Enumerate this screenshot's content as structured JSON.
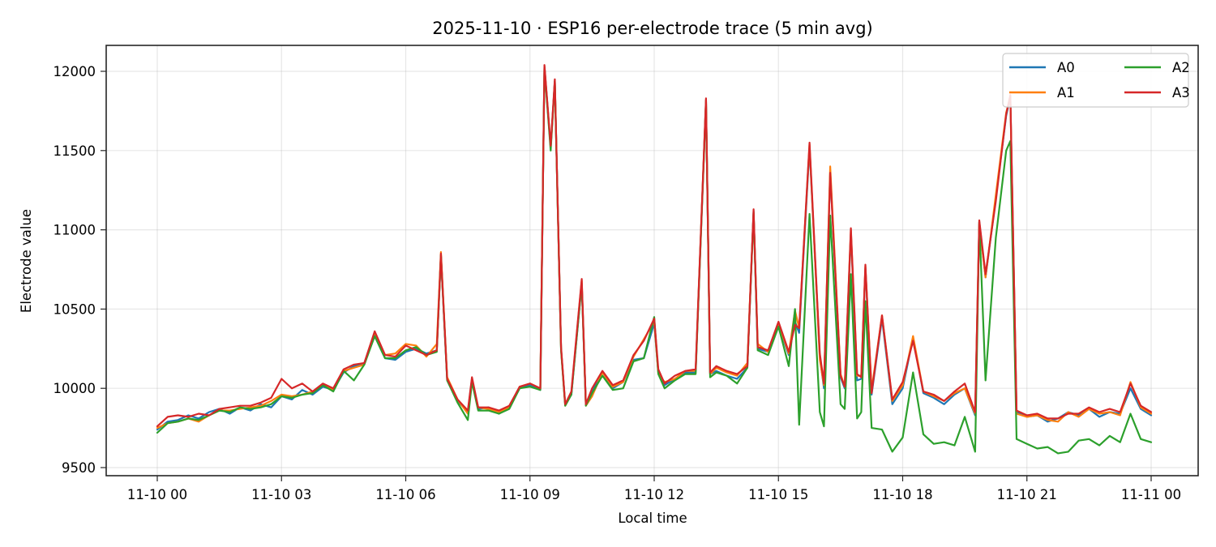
{
  "chart_data": {
    "type": "line",
    "title": "2025-11-10 · ESP16 per-electrode trace (5 min avg)",
    "xlabel": "Local time",
    "ylabel": "Electrode value",
    "ylim": [
      9450,
      12160
    ],
    "xlim_hours": [
      -0.75,
      24.75
    ],
    "grid": true,
    "legend_position": "upper right",
    "legend_columns": 2,
    "x_ticks": [
      {
        "hour": 0,
        "label": "11-10 00"
      },
      {
        "hour": 3,
        "label": "11-10 03"
      },
      {
        "hour": 6,
        "label": "11-10 06"
      },
      {
        "hour": 9,
        "label": "11-10 09"
      },
      {
        "hour": 12,
        "label": "11-10 12"
      },
      {
        "hour": 15,
        "label": "11-10 15"
      },
      {
        "hour": 18,
        "label": "11-10 18"
      },
      {
        "hour": 21,
        "label": "11-10 21"
      },
      {
        "hour": 24,
        "label": "11-11 00"
      }
    ],
    "y_ticks": [
      9500,
      10000,
      10500,
      11000,
      11500,
      12000
    ],
    "x_hours": [
      0,
      0.25,
      0.5,
      0.75,
      1,
      1.25,
      1.5,
      1.75,
      2,
      2.25,
      2.5,
      2.75,
      3,
      3.25,
      3.5,
      3.75,
      4,
      4.25,
      4.5,
      4.75,
      5,
      5.25,
      5.5,
      5.75,
      6,
      6.25,
      6.5,
      6.75,
      6.85,
      7,
      7.25,
      7.5,
      7.6,
      7.75,
      8,
      8.25,
      8.5,
      8.75,
      9,
      9.25,
      9.35,
      9.5,
      9.6,
      9.75,
      9.85,
      10,
      10.25,
      10.35,
      10.5,
      10.75,
      11,
      11.25,
      11.5,
      11.75,
      12,
      12.1,
      12.25,
      12.5,
      12.75,
      13,
      13.25,
      13.35,
      13.5,
      13.75,
      14,
      14.25,
      14.4,
      14.5,
      14.75,
      15,
      15.25,
      15.4,
      15.5,
      15.75,
      16,
      16.1,
      16.25,
      16.5,
      16.6,
      16.75,
      16.9,
      17,
      17.1,
      17.25,
      17.5,
      17.75,
      18,
      18.25,
      18.5,
      18.75,
      19,
      19.25,
      19.5,
      19.75,
      19.85,
      20,
      20.25,
      20.5,
      20.6,
      20.75,
      21,
      21.25,
      21.5,
      21.75,
      22,
      22.25,
      22.5,
      22.75,
      23,
      23.25,
      23.5,
      23.75,
      24
    ],
    "series": [
      {
        "name": "A0",
        "color": "#1f77b4",
        "values": [
          9740,
          9790,
          9800,
          9830,
          9810,
          9850,
          9870,
          9840,
          9880,
          9860,
          9900,
          9880,
          9950,
          9930,
          9990,
          9960,
          10010,
          9990,
          10100,
          10140,
          10160,
          10330,
          10190,
          10180,
          10230,
          10250,
          10220,
          10240,
          10840,
          10050,
          9920,
          9850,
          10060,
          9870,
          9880,
          9840,
          9880,
          10000,
          10020,
          9990,
          12030,
          11520,
          11940,
          10250,
          9900,
          9960,
          10660,
          9900,
          9990,
          10080,
          10000,
          10040,
          10180,
          10190,
          10410,
          10100,
          10020,
          10060,
          10100,
          10100,
          11820,
          10090,
          10110,
          10080,
          10060,
          10130,
          11120,
          10250,
          10230,
          10400,
          10210,
          10420,
          10350,
          11520,
          10200,
          10000,
          11370,
          10070,
          10000,
          10980,
          10050,
          10060,
          10760,
          9960,
          10440,
          9900,
          10000,
          10320,
          9970,
          9940,
          9900,
          9960,
          10000,
          9830,
          11050,
          10700,
          11200,
          11720,
          11840,
          9850,
          9820,
          9830,
          9790,
          9810,
          9850,
          9830,
          9870,
          9820,
          9850,
          9840,
          10000,
          9870,
          9830,
          9850,
          9810,
          9810
        ]
      },
      {
        "name": "A1",
        "color": "#ff7f0e",
        "values": [
          9750,
          9780,
          9790,
          9810,
          9790,
          9830,
          9860,
          9860,
          9870,
          9880,
          9890,
          9920,
          9960,
          9950,
          9960,
          9980,
          10020,
          9990,
          10110,
          10130,
          10150,
          10340,
          10210,
          10220,
          10280,
          10270,
          10200,
          10280,
          10860,
          10070,
          9930,
          9840,
          10050,
          9880,
          9870,
          9850,
          9880,
          10010,
          10030,
          10000,
          12030,
          11520,
          11930,
          10250,
          9890,
          9970,
          10680,
          9890,
          9950,
          10100,
          10010,
          10040,
          10200,
          10310,
          10420,
          10090,
          10040,
          10060,
          10110,
          10110,
          11820,
          10090,
          10130,
          10100,
          10080,
          10160,
          11110,
          10280,
          10230,
          10410,
          10220,
          10490,
          10380,
          11540,
          10180,
          10020,
          11400,
          10090,
          10010,
          11000,
          10080,
          10080,
          10770,
          9990,
          10460,
          9920,
          10020,
          10330,
          9980,
          9950,
          9920,
          9970,
          10000,
          9840,
          11040,
          10700,
          11220,
          11740,
          11840,
          9840,
          9820,
          9830,
          9800,
          9790,
          9850,
          9820,
          9870,
          9840,
          9850,
          9830,
          10040,
          9880,
          9840,
          9860,
          9830,
          9840
        ]
      },
      {
        "name": "A2",
        "color": "#2ca02c",
        "values": [
          9720,
          9780,
          9790,
          9810,
          9800,
          9830,
          9860,
          9850,
          9880,
          9870,
          9880,
          9900,
          9950,
          9940,
          9960,
          9970,
          10020,
          9980,
          10110,
          10050,
          10150,
          10330,
          10190,
          10190,
          10240,
          10260,
          10210,
          10230,
          10840,
          10050,
          9910,
          9800,
          10040,
          9860,
          9860,
          9840,
          9870,
          10000,
          10010,
          9990,
          12020,
          11500,
          11940,
          10240,
          9890,
          9960,
          10660,
          9890,
          9970,
          10080,
          9990,
          10000,
          10170,
          10190,
          10450,
          10090,
          10000,
          10050,
          10090,
          10090,
          11810,
          10070,
          10100,
          10080,
          10030,
          10130,
          11110,
          10240,
          10210,
          10390,
          10140,
          10500,
          9770,
          11100,
          9850,
          9760,
          11090,
          9900,
          9870,
          10720,
          9810,
          9850,
          10550,
          9750,
          9740,
          9600,
          9690,
          10100,
          9710,
          9650,
          9660,
          9640,
          9820,
          9600,
          11050,
          10050,
          10950,
          11500,
          11560,
          9680,
          9650,
          9620,
          9630,
          9590,
          9600,
          9670,
          9680,
          9640,
          9700,
          9660,
          9840,
          9680,
          9660,
          9700,
          9670,
          9660
        ]
      },
      {
        "name": "A3",
        "color": "#d62728",
        "values": [
          9760,
          9820,
          9830,
          9820,
          9840,
          9830,
          9870,
          9880,
          9890,
          9890,
          9910,
          9940,
          10060,
          10000,
          10030,
          9980,
          10030,
          10000,
          10120,
          10150,
          10160,
          10360,
          10210,
          10200,
          10270,
          10240,
          10210,
          10240,
          10850,
          10060,
          9930,
          9860,
          10070,
          9880,
          9880,
          9860,
          9890,
          10010,
          10030,
          10000,
          12040,
          11530,
          11950,
          10260,
          9900,
          9980,
          10690,
          9900,
          10000,
          10110,
          10020,
          10050,
          10210,
          10300,
          10440,
          10120,
          10030,
          10080,
          10110,
          10120,
          11830,
          10100,
          10140,
          10110,
          10090,
          10140,
          11130,
          10260,
          10240,
          10420,
          10230,
          10400,
          10380,
          11550,
          10220,
          10030,
          11360,
          10080,
          10010,
          11010,
          10090,
          10070,
          10780,
          9970,
          10460,
          9930,
          10040,
          10300,
          9980,
          9960,
          9920,
          9980,
          10030,
          9850,
          11060,
          10720,
          11180,
          11730,
          11850,
          9860,
          9830,
          9840,
          9810,
          9810,
          9840,
          9840,
          9880,
          9850,
          9870,
          9850,
          10030,
          9890,
          9850,
          9880,
          9840,
          9870
        ]
      }
    ]
  }
}
